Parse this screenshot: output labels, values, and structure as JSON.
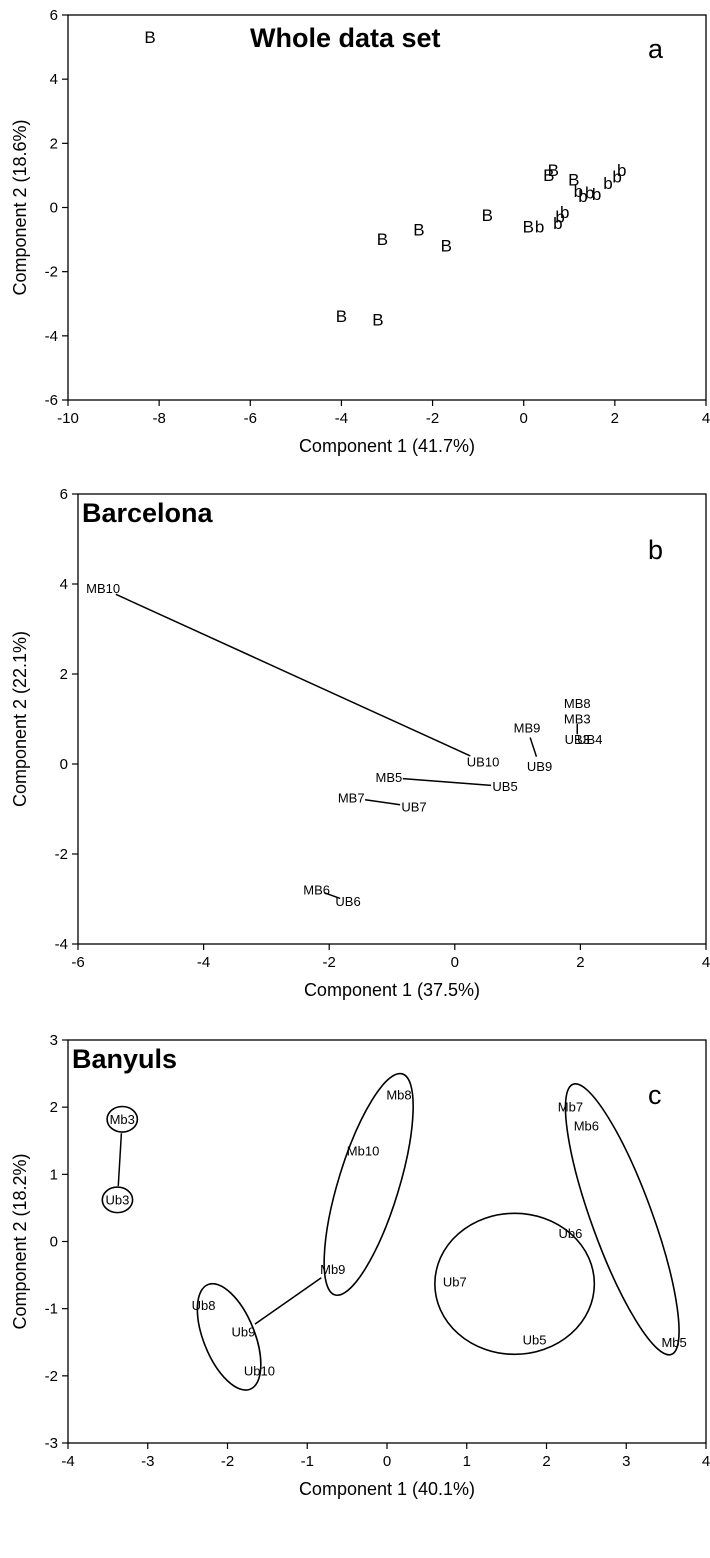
{
  "chart_data": [
    {
      "type": "scatter",
      "title": "Whole data set",
      "panel_letter": "a",
      "xlabel": "Component 1 (41.7%)",
      "ylabel": "Component 2 (18.6%)",
      "xlim": [
        -10,
        4
      ],
      "ylim": [
        -6,
        6
      ],
      "xticks": [
        -10,
        -8,
        -6,
        -4,
        -2,
        0,
        2,
        4
      ],
      "yticks": [
        -6,
        -4,
        -2,
        0,
        2,
        4,
        6
      ],
      "tick_labels_y": [
        "-6",
        "-4",
        "-2",
        "0",
        "2",
        "4",
        "6"
      ],
      "grid": false,
      "points": [
        {
          "label": "B",
          "x": -8.2,
          "y": 5.3
        },
        {
          "label": "B",
          "x": -4.0,
          "y": -3.4
        },
        {
          "label": "B",
          "x": -3.2,
          "y": -3.5
        },
        {
          "label": "B",
          "x": -3.1,
          "y": -1.0
        },
        {
          "label": "B",
          "x": -2.3,
          "y": -0.7
        },
        {
          "label": "B",
          "x": -1.7,
          "y": -1.2
        },
        {
          "label": "B",
          "x": -0.8,
          "y": -0.25
        },
        {
          "label": "B",
          "x": 0.1,
          "y": -0.6
        },
        {
          "label": "b",
          "x": 0.35,
          "y": -0.6
        },
        {
          "label": "B",
          "x": 0.55,
          "y": 1.0
        },
        {
          "label": "B",
          "x": 0.65,
          "y": 1.15
        },
        {
          "label": "b",
          "x": 0.75,
          "y": -0.5
        },
        {
          "label": "b",
          "x": 0.8,
          "y": -0.3
        },
        {
          "label": "b",
          "x": 0.9,
          "y": -0.15
        },
        {
          "label": "B",
          "x": 1.1,
          "y": 0.85
        },
        {
          "label": "b",
          "x": 1.2,
          "y": 0.5
        },
        {
          "label": "b",
          "x": 1.3,
          "y": 0.35
        },
        {
          "label": "b",
          "x": 1.45,
          "y": 0.45
        },
        {
          "label": "b",
          "x": 1.6,
          "y": 0.4
        },
        {
          "label": "b",
          "x": 1.85,
          "y": 0.75
        },
        {
          "label": "b",
          "x": 2.05,
          "y": 0.95
        },
        {
          "label": "b",
          "x": 2.15,
          "y": 1.15
        }
      ]
    },
    {
      "type": "scatter",
      "title": "Barcelona",
      "panel_letter": "b",
      "xlabel": "Component 1 (37.5%)",
      "ylabel": "Component 2 (22.1%)",
      "xlim": [
        -6,
        4
      ],
      "ylim": [
        -4,
        6
      ],
      "xticks": [
        -6,
        -4,
        -2,
        0,
        2,
        4
      ],
      "yticks": [
        -4,
        -2,
        0,
        2,
        4,
        6
      ],
      "grid": false,
      "points": [
        {
          "label": "MB10",
          "x": -5.6,
          "y": 3.9
        },
        {
          "label": "UB10",
          "x": 0.45,
          "y": 0.05
        },
        {
          "label": "MB9",
          "x": 1.15,
          "y": 0.8
        },
        {
          "label": "UB9",
          "x": 1.35,
          "y": -0.05
        },
        {
          "label": "MB8",
          "x": 1.95,
          "y": 1.35
        },
        {
          "label": "MB3",
          "x": 1.95,
          "y": 1.0
        },
        {
          "label": "UB3",
          "x": 1.95,
          "y": 0.55
        },
        {
          "label": "UB4",
          "x": 2.15,
          "y": 0.55
        },
        {
          "label": "MB5",
          "x": -1.05,
          "y": -0.3
        },
        {
          "label": "UB5",
          "x": 0.8,
          "y": -0.5
        },
        {
          "label": "MB7",
          "x": -1.65,
          "y": -0.75
        },
        {
          "label": "UB7",
          "x": -0.65,
          "y": -0.95
        },
        {
          "label": "MB6",
          "x": -2.2,
          "y": -2.8
        },
        {
          "label": "UB6",
          "x": -1.7,
          "y": -3.05
        }
      ],
      "links": [
        {
          "from": "MB10",
          "to": "UB10"
        },
        {
          "from": "MB9",
          "to": "UB9"
        },
        {
          "from": "MB3",
          "to": "UB3"
        },
        {
          "from": "MB5",
          "to": "UB5"
        },
        {
          "from": "MB7",
          "to": "UB7"
        },
        {
          "from": "MB6",
          "to": "UB6"
        }
      ]
    },
    {
      "type": "scatter",
      "title": "Banyuls",
      "panel_letter": "c",
      "xlabel": "Component 1 (40.1%)",
      "ylabel": "Component 2 (18.2%)",
      "xlim": [
        -4,
        4
      ],
      "ylim": [
        -3,
        3
      ],
      "xticks": [
        -4,
        -3,
        -2,
        -1,
        0,
        1,
        2,
        3,
        4
      ],
      "yticks": [
        -3,
        -2,
        -1,
        0,
        1,
        2,
        3
      ],
      "grid": false,
      "points": [
        {
          "label": "Mb3",
          "x": -3.32,
          "y": 1.82
        },
        {
          "label": "Ub3",
          "x": -3.38,
          "y": 0.62
        },
        {
          "label": "Mb8",
          "x": 0.15,
          "y": 2.18
        },
        {
          "label": "Mb10",
          "x": -0.3,
          "y": 1.35
        },
        {
          "label": "Mb9",
          "x": -0.68,
          "y": -0.42
        },
        {
          "label": "Ub8",
          "x": -2.3,
          "y": -0.95
        },
        {
          "label": "Ub9",
          "x": -1.8,
          "y": -1.35
        },
        {
          "label": "Ub10",
          "x": -1.6,
          "y": -1.93
        },
        {
          "label": "Mb7",
          "x": 2.3,
          "y": 2.0
        },
        {
          "label": "Mb6",
          "x": 2.5,
          "y": 1.72
        },
        {
          "label": "Ub6",
          "x": 2.3,
          "y": 0.12
        },
        {
          "label": "Ub7",
          "x": 0.85,
          "y": -0.6
        },
        {
          "label": "Ub5",
          "x": 1.85,
          "y": -1.47
        },
        {
          "label": "Mb5",
          "x": 3.6,
          "y": -1.5
        }
      ],
      "links": [
        {
          "from": "Mb3",
          "to": "Ub3"
        },
        {
          "from": "Mb9",
          "to": "Ub9"
        }
      ],
      "ellipses": [
        {
          "members": [
            "Mb3"
          ],
          "cx": -3.32,
          "cy": 1.82,
          "rx": 0.19,
          "ry": 0.19,
          "angle": 0
        },
        {
          "members": [
            "Ub3"
          ],
          "cx": -3.38,
          "cy": 0.62,
          "rx": 0.19,
          "ry": 0.19,
          "angle": 0
        },
        {
          "members": [
            "Mb8",
            "Mb10",
            "Mb9"
          ],
          "cx": -0.23,
          "cy": 0.85,
          "rx": 0.38,
          "ry": 1.72,
          "angle": 17
        },
        {
          "members": [
            "Ub8",
            "Ub9",
            "Ub10"
          ],
          "cx": -1.98,
          "cy": -1.42,
          "rx": 0.32,
          "ry": 0.84,
          "angle": -22
        },
        {
          "members": [
            "Ub6",
            "Ub7",
            "Ub5"
          ],
          "cx": 1.6,
          "cy": -0.63,
          "rx": 1.0,
          "ry": 1.05,
          "angle": 0
        },
        {
          "members": [
            "Mb7",
            "Mb6",
            "Mb5"
          ],
          "cx": 2.95,
          "cy": 0.33,
          "rx": 0.38,
          "ry": 2.14,
          "angle": -20
        }
      ]
    }
  ]
}
